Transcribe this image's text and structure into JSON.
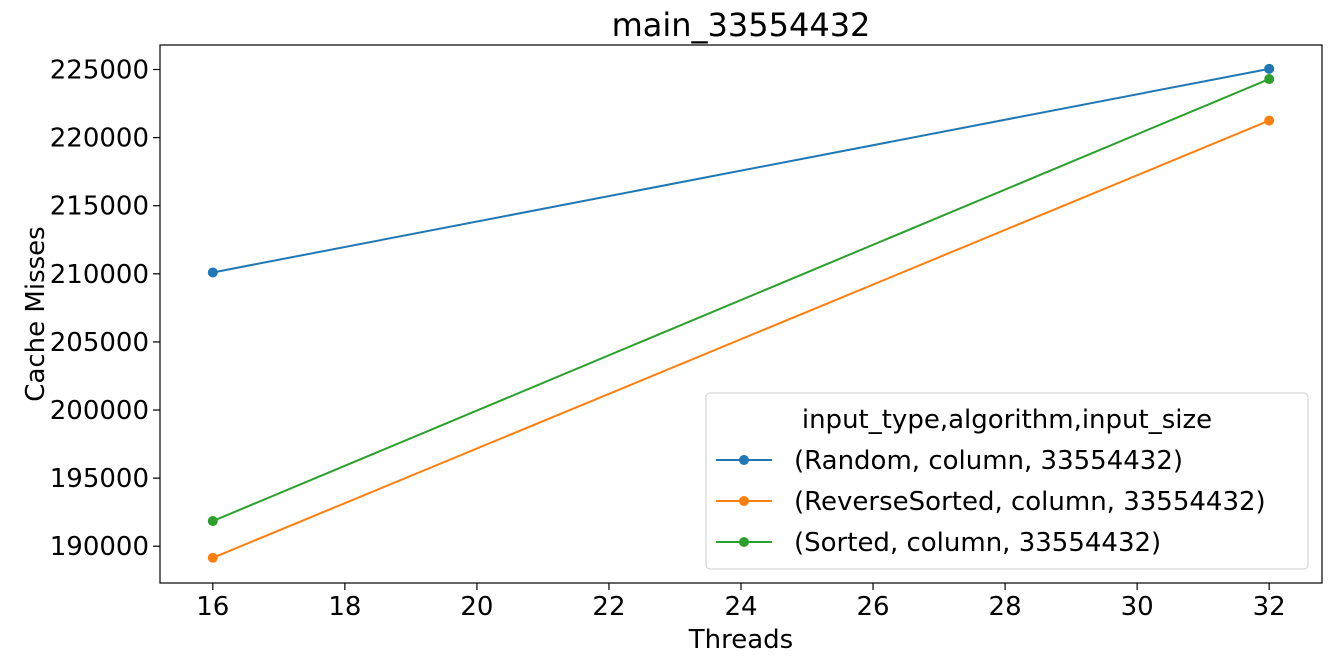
{
  "chart_data": {
    "type": "line",
    "title": "main_33554432",
    "xlabel": "Threads",
    "ylabel": "Cache Misses",
    "xlim": [
      15.2,
      32.8
    ],
    "ylim": [
      187300,
      226800
    ],
    "xticks": [
      16,
      18,
      20,
      22,
      24,
      26,
      28,
      30,
      32
    ],
    "yticks": [
      190000,
      195000,
      200000,
      205000,
      210000,
      215000,
      220000,
      225000
    ],
    "x": [
      16,
      32
    ],
    "series": [
      {
        "name": "(Random, column, 33554432)",
        "color": "#1f77b4",
        "values": [
          210100,
          225050
        ]
      },
      {
        "name": "(ReverseSorted, column, 33554432)",
        "color": "#ff7f0e",
        "values": [
          189150,
          221250
        ]
      },
      {
        "name": "(Sorted, column, 33554432)",
        "color": "#2ca02c",
        "values": [
          191850,
          224300
        ]
      }
    ],
    "legend": {
      "title": "input_type,algorithm,input_size",
      "placement": "lower-right"
    },
    "grid": false
  }
}
